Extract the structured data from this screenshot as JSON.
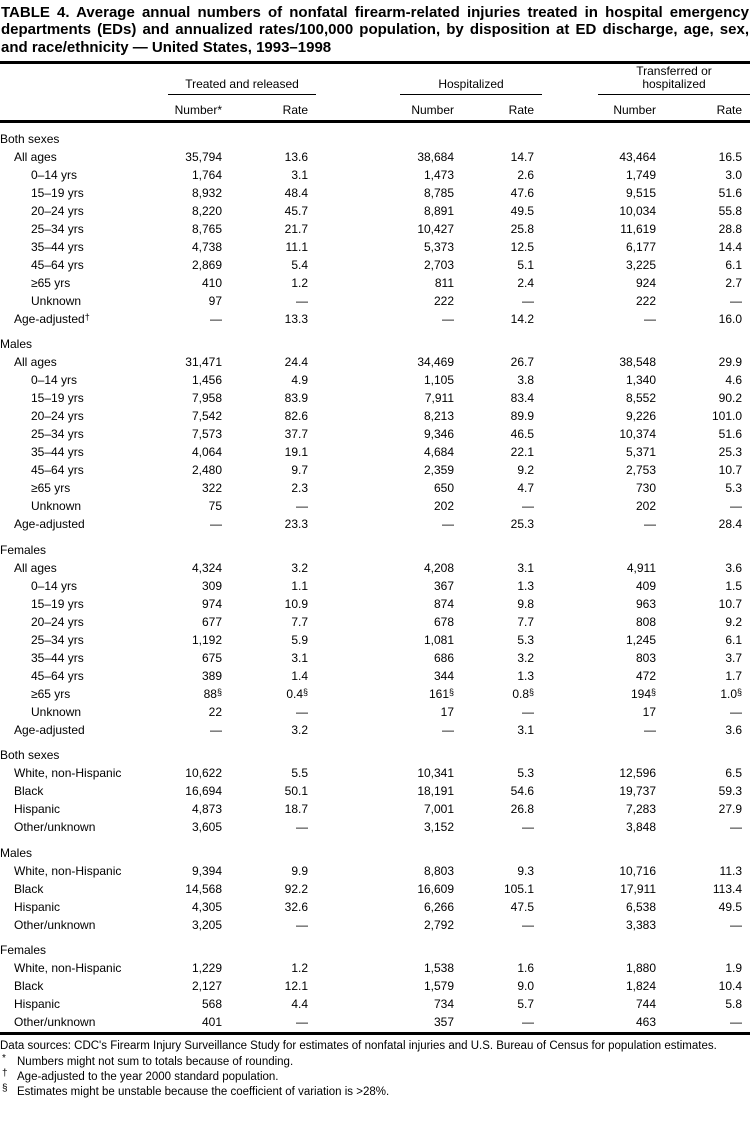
{
  "title": "TABLE 4. Average annual numbers of nonfatal firearm-related injuries treated in hospital emergency departments (EDs) and annualized rates/100,000 population, by disposition at ED discharge, age, sex, and race/ethnicity — United States, 1993–1998",
  "table": {
    "col_groups": [
      {
        "label": "Treated and released",
        "cols": [
          "Number*",
          "Rate"
        ]
      },
      {
        "label": "Hospitalized",
        "cols": [
          "Number",
          "Rate"
        ]
      },
      {
        "label": "Transferred or hospitalized",
        "cols": [
          "Number",
          "Rate"
        ]
      }
    ],
    "sections": [
      {
        "header": "Both sexes",
        "rows": [
          {
            "label": "All ages",
            "indent": 1,
            "values": [
              "35,794",
              "13.6",
              "38,684",
              "14.7",
              "43,464",
              "16.5"
            ]
          },
          {
            "label": "0–14 yrs",
            "indent": 2,
            "values": [
              "1,764",
              "3.1",
              "1,473",
              "2.6",
              "1,749",
              "3.0"
            ]
          },
          {
            "label": "15–19 yrs",
            "indent": 2,
            "values": [
              "8,932",
              "48.4",
              "8,785",
              "47.6",
              "9,515",
              "51.6"
            ]
          },
          {
            "label": "20–24 yrs",
            "indent": 2,
            "values": [
              "8,220",
              "45.7",
              "8,891",
              "49.5",
              "10,034",
              "55.8"
            ]
          },
          {
            "label": "25–34 yrs",
            "indent": 2,
            "values": [
              "8,765",
              "21.7",
              "10,427",
              "25.8",
              "11,619",
              "28.8"
            ]
          },
          {
            "label": "35–44 yrs",
            "indent": 2,
            "values": [
              "4,738",
              "11.1",
              "5,373",
              "12.5",
              "6,177",
              "14.4"
            ]
          },
          {
            "label": "45–64 yrs",
            "indent": 2,
            "values": [
              "2,869",
              "5.4",
              "2,703",
              "5.1",
              "3,225",
              "6.1"
            ]
          },
          {
            "label": "≥65 yrs",
            "indent": 2,
            "values": [
              "410",
              "1.2",
              "811",
              "2.4",
              "924",
              "2.7"
            ]
          },
          {
            "label": "Unknown",
            "indent": 2,
            "values": [
              "97",
              "—",
              "222",
              "—",
              "222",
              "—"
            ]
          },
          {
            "label": "Age-adjusted†",
            "indent": 1,
            "values": [
              "—",
              "13.3",
              "—",
              "14.2",
              "—",
              "16.0"
            ]
          }
        ]
      },
      {
        "header": "Males",
        "rows": [
          {
            "label": "All ages",
            "indent": 1,
            "values": [
              "31,471",
              "24.4",
              "34,469",
              "26.7",
              "38,548",
              "29.9"
            ]
          },
          {
            "label": "0–14 yrs",
            "indent": 2,
            "values": [
              "1,456",
              "4.9",
              "1,105",
              "3.8",
              "1,340",
              "4.6"
            ]
          },
          {
            "label": "15–19 yrs",
            "indent": 2,
            "values": [
              "7,958",
              "83.9",
              "7,911",
              "83.4",
              "8,552",
              "90.2"
            ]
          },
          {
            "label": "20–24 yrs",
            "indent": 2,
            "values": [
              "7,542",
              "82.6",
              "8,213",
              "89.9",
              "9,226",
              "101.0"
            ]
          },
          {
            "label": "25–34 yrs",
            "indent": 2,
            "values": [
              "7,573",
              "37.7",
              "9,346",
              "46.5",
              "10,374",
              "51.6"
            ]
          },
          {
            "label": "35–44 yrs",
            "indent": 2,
            "values": [
              "4,064",
              "19.1",
              "4,684",
              "22.1",
              "5,371",
              "25.3"
            ]
          },
          {
            "label": "45–64 yrs",
            "indent": 2,
            "values": [
              "2,480",
              "9.7",
              "2,359",
              "9.2",
              "2,753",
              "10.7"
            ]
          },
          {
            "label": "≥65 yrs",
            "indent": 2,
            "values": [
              "322",
              "2.3",
              "650",
              "4.7",
              "730",
              "5.3"
            ]
          },
          {
            "label": "Unknown",
            "indent": 2,
            "values": [
              "75",
              "—",
              "202",
              "—",
              "202",
              "—"
            ]
          },
          {
            "label": "Age-adjusted",
            "indent": 1,
            "values": [
              "—",
              "23.3",
              "—",
              "25.3",
              "—",
              "28.4"
            ]
          }
        ]
      },
      {
        "header": "Females",
        "rows": [
          {
            "label": "All ages",
            "indent": 1,
            "values": [
              "4,324",
              "3.2",
              "4,208",
              "3.1",
              "4,911",
              "3.6"
            ]
          },
          {
            "label": "0–14 yrs",
            "indent": 2,
            "values": [
              "309",
              "1.1",
              "367",
              "1.3",
              "409",
              "1.5"
            ]
          },
          {
            "label": "15–19 yrs",
            "indent": 2,
            "values": [
              "974",
              "10.9",
              "874",
              "9.8",
              "963",
              "10.7"
            ]
          },
          {
            "label": "20–24 yrs",
            "indent": 2,
            "values": [
              "677",
              "7.7",
              "678",
              "7.7",
              "808",
              "9.2"
            ]
          },
          {
            "label": "25–34 yrs",
            "indent": 2,
            "values": [
              "1,192",
              "5.9",
              "1,081",
              "5.3",
              "1,245",
              "6.1"
            ]
          },
          {
            "label": "35–44 yrs",
            "indent": 2,
            "values": [
              "675",
              "3.1",
              "686",
              "3.2",
              "803",
              "3.7"
            ]
          },
          {
            "label": "45–64 yrs",
            "indent": 2,
            "values": [
              "389",
              "1.4",
              "344",
              "1.3",
              "472",
              "1.7"
            ]
          },
          {
            "label": "≥65 yrs",
            "indent": 2,
            "values": [
              "88§",
              "0.4§",
              "161§",
              "0.8§",
              "194§",
              "1.0§"
            ]
          },
          {
            "label": "Unknown",
            "indent": 2,
            "values": [
              "22",
              "—",
              "17",
              "—",
              "17",
              "—"
            ]
          },
          {
            "label": "Age-adjusted",
            "indent": 1,
            "values": [
              "—",
              "3.2",
              "—",
              "3.1",
              "—",
              "3.6"
            ]
          }
        ]
      },
      {
        "header": "Both sexes",
        "rows": [
          {
            "label": "White, non-Hispanic",
            "indent": 1,
            "values": [
              "10,622",
              "5.5",
              "10,341",
              "5.3",
              "12,596",
              "6.5"
            ]
          },
          {
            "label": "Black",
            "indent": 1,
            "values": [
              "16,694",
              "50.1",
              "18,191",
              "54.6",
              "19,737",
              "59.3"
            ]
          },
          {
            "label": "Hispanic",
            "indent": 1,
            "values": [
              "4,873",
              "18.7",
              "7,001",
              "26.8",
              "7,283",
              "27.9"
            ]
          },
          {
            "label": "Other/unknown",
            "indent": 1,
            "values": [
              "3,605",
              "—",
              "3,152",
              "—",
              "3,848",
              "—"
            ]
          }
        ]
      },
      {
        "header": "Males",
        "rows": [
          {
            "label": "White, non-Hispanic",
            "indent": 1,
            "values": [
              "9,394",
              "9.9",
              "8,803",
              "9.3",
              "10,716",
              "11.3"
            ]
          },
          {
            "label": "Black",
            "indent": 1,
            "values": [
              "14,568",
              "92.2",
              "16,609",
              "105.1",
              "17,911",
              "113.4"
            ]
          },
          {
            "label": "Hispanic",
            "indent": 1,
            "values": [
              "4,305",
              "32.6",
              "6,266",
              "47.5",
              "6,538",
              "49.5"
            ]
          },
          {
            "label": "Other/unknown",
            "indent": 1,
            "values": [
              "3,205",
              "—",
              "2,792",
              "—",
              "3,383",
              "—"
            ]
          }
        ]
      },
      {
        "header": "Females",
        "rows": [
          {
            "label": "White, non-Hispanic",
            "indent": 1,
            "values": [
              "1,229",
              "1.2",
              "1,538",
              "1.6",
              "1,880",
              "1.9"
            ]
          },
          {
            "label": "Black",
            "indent": 1,
            "values": [
              "2,127",
              "12.1",
              "1,579",
              "9.0",
              "1,824",
              "10.4"
            ]
          },
          {
            "label": "Hispanic",
            "indent": 1,
            "values": [
              "568",
              "4.4",
              "734",
              "5.7",
              "744",
              "5.8"
            ]
          },
          {
            "label": "Other/unknown",
            "indent": 1,
            "values": [
              "401",
              "—",
              "357",
              "—",
              "463",
              "—"
            ]
          }
        ]
      }
    ]
  },
  "footnotes": {
    "data_sources": "Data sources: CDC's Firearm Injury Surveillance Study for estimates of nonfatal injuries and U.S. Bureau of Census for population estimates.",
    "items": [
      {
        "marker": "*",
        "text": "Numbers might not sum to totals because of rounding."
      },
      {
        "marker": "†",
        "text": "Age-adjusted to the year 2000 standard population."
      },
      {
        "marker": "§",
        "text": "Estimates might be unstable because the coefficient of variation is >28%."
      }
    ]
  }
}
